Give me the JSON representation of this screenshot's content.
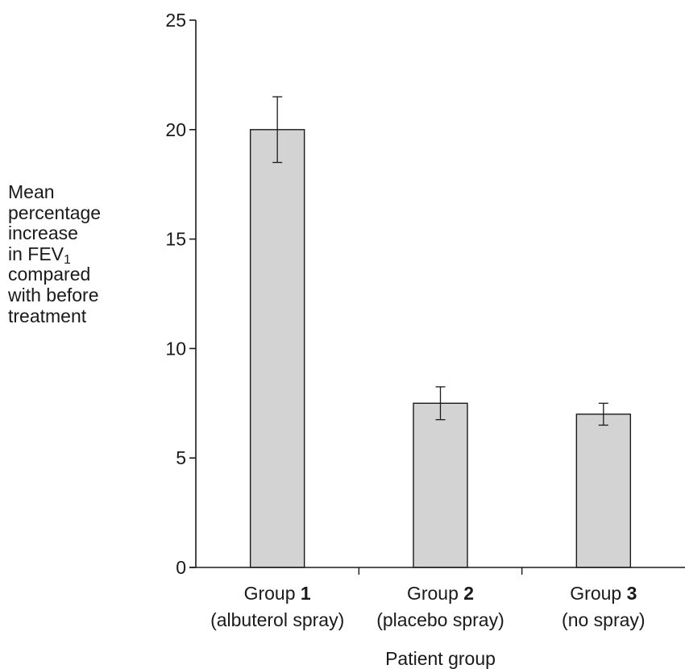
{
  "chart_data": {
    "type": "bar",
    "categories": [
      {
        "line1_prefix": "Group ",
        "line1_bold": "1",
        "line2": "(albuterol spray)"
      },
      {
        "line1_prefix": "Group ",
        "line1_bold": "2",
        "line2": "(placebo spray)"
      },
      {
        "line1_prefix": "Group ",
        "line1_bold": "3",
        "line2": "(no spray)"
      }
    ],
    "values": [
      20,
      7.5,
      7
    ],
    "error_low": [
      18.5,
      6.75,
      6.5
    ],
    "error_high": [
      21.5,
      8.25,
      7.5
    ],
    "xlabel": "Patient group",
    "ylabel_lines": [
      "Mean",
      "percentage",
      "increase"
    ],
    "ylabel_fev_prefix": "in FEV",
    "ylabel_fev_sub": "1",
    "ylabel_lines_after": [
      "compared",
      "with before",
      "treatment"
    ],
    "ylim": [
      0,
      25
    ],
    "yticks": [
      0,
      5,
      10,
      15,
      20,
      25
    ],
    "bar_color": "#d3d3d3",
    "grid": false
  }
}
